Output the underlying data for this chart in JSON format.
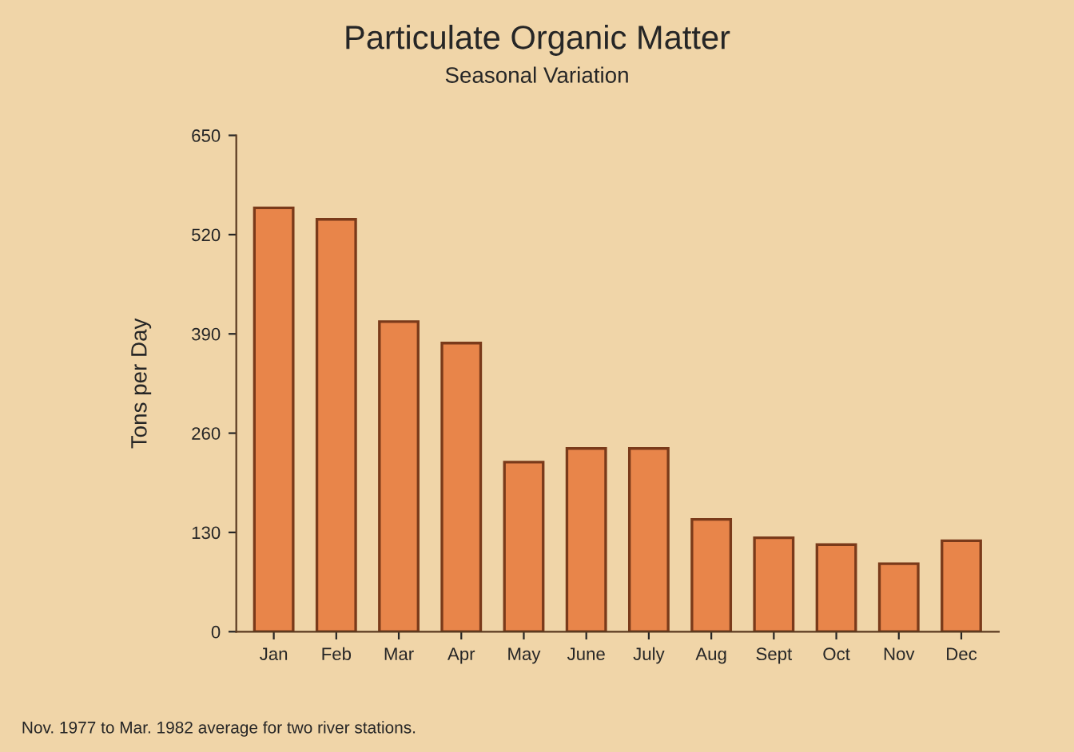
{
  "chart_data": {
    "type": "bar",
    "title": "Particulate Organic Matter",
    "subtitle": "Seasonal Variation",
    "ylabel": "Tons per Day",
    "categories": [
      "Jan",
      "Feb",
      "Mar",
      "Apr",
      "May",
      "June",
      "July",
      "Aug",
      "Sept",
      "Oct",
      "Nov",
      "Dec"
    ],
    "values": [
      555,
      540,
      406,
      378,
      222,
      240,
      240,
      147,
      123,
      114,
      89,
      119
    ],
    "color": "#e8854a",
    "ylim": [
      0,
      650
    ],
    "yticks": [
      0,
      130,
      260,
      390,
      520,
      650
    ],
    "grid": false,
    "annotations": [
      "Nov. 1977 to Mar. 1982 average for two river stations."
    ]
  }
}
